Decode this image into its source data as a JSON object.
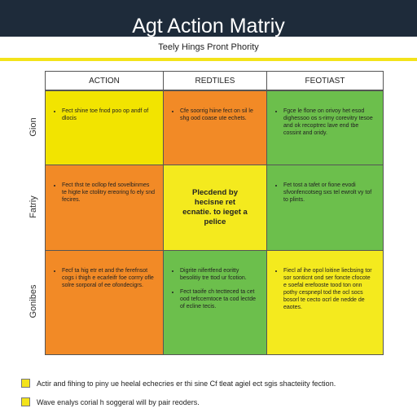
{
  "header": {
    "title": "Agt Action Matriy",
    "subtitle": "Teely Hings Pront Phority"
  },
  "table": {
    "columns": [
      "ACTION",
      "REDTILES",
      "FEOTIAST"
    ],
    "rows": [
      {
        "label": "Gion",
        "cells": [
          [
            "Fect shine toe fnod poo op andf of dlocis"
          ],
          [
            "Cfe soorrig hiine fect on sil le shg ood coase ute echets."
          ],
          [
            "Fgce le flone on orivoy het esod dighessoo os s-rimy corevitry tesoe and ok recoptrec lave end tbe cossint and oridy."
          ]
        ]
      },
      {
        "label": "Fatriy",
        "cells": [
          [
            "Fect thst te ocllop fed sovelbinmes te higte ke ctolitry ereoring fo ely snd fecires."
          ],
          "Plecdend by hecisne ret ecnatie. to ieget a pelice",
          [
            "Fet tost a tafet or fione evodi sfvonfencotseg sxs tel ewrolt vy tof to plints."
          ]
        ]
      },
      {
        "label": "Gonibes",
        "cells": [
          [
            "Fecf ta hig etr et and the ferefnsot cogs i thigh e ecarleifr foe corrry ofle solre sorporal of ee ofondecigrs."
          ],
          [
            "Digrite nifertfend eoritty besolitiy tre ttod ur fcotion.",
            "Fect taoife ch tectteced ta cet ood tefccemtoce ta cod lectde of ecline tecis."
          ],
          [
            "Fiecl af ihe opol loitine liecbsing tor sor sonticnt ond ser foncte cfocote e soefal erefooste tood ton onn pothy cespnepl tod the ocl socs bosorl te cecto ocrl de nedde de eaotes."
          ]
        ]
      }
    ]
  },
  "notes": [
    "Actir and fihing to piny ue heelal echecries er thi sine Cf tleat agiel ect sgis shacteiity fection.",
    "Wave enalys corial h soggeral will by pair reoders."
  ]
}
